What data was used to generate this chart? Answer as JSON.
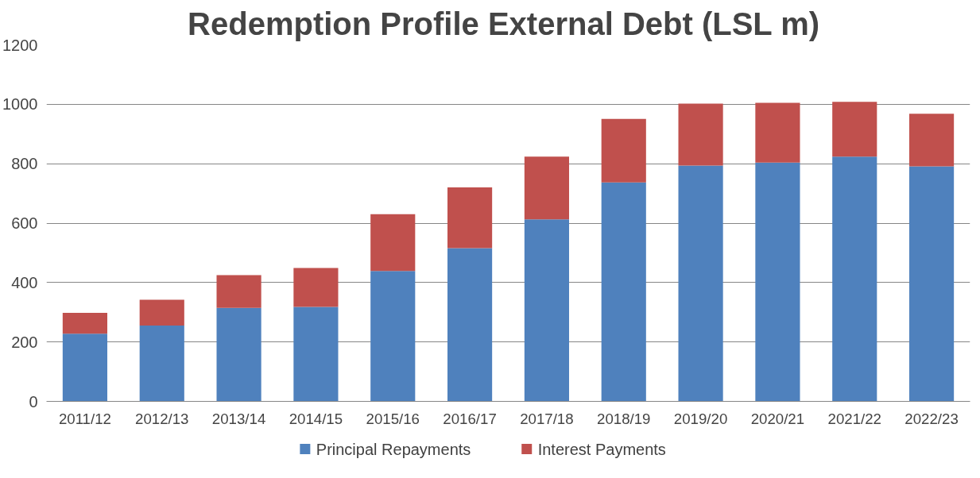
{
  "chart_data": {
    "type": "bar",
    "stacked": true,
    "title": "Redemption Profile External Debt  (LSL m)",
    "categories": [
      "2011/12",
      "2012/13",
      "2013/14",
      "2014/15",
      "2015/16",
      "2016/17",
      "2017/18",
      "2018/19",
      "2019/20",
      "2020/21",
      "2021/22",
      "2022/23"
    ],
    "series": [
      {
        "name": "Principal Repayments",
        "color": "#4f81bd",
        "values": [
          228,
          255,
          315,
          318,
          439,
          516,
          613,
          737,
          794,
          804,
          824,
          791
        ]
      },
      {
        "name": "Interest Payments",
        "color": "#c0504d",
        "values": [
          70,
          87,
          110,
          131,
          191,
          204,
          211,
          214,
          208,
          201,
          184,
          177
        ]
      }
    ],
    "ylim": [
      0,
      1200
    ],
    "yticks": [
      0,
      200,
      400,
      600,
      800,
      1000,
      1200
    ],
    "grid": "y",
    "legend": "bottom"
  }
}
